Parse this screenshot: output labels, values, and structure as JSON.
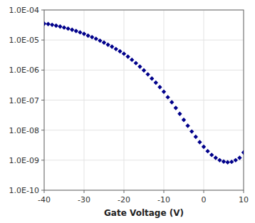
{
  "chart_data": {
    "type": "scatter",
    "xlabel": "Gate Voltage (V)",
    "x": [
      -40,
      -39,
      -38,
      -37,
      -36,
      -35,
      -34,
      -33,
      -32,
      -31,
      -30,
      -29,
      -28,
      -27,
      -26,
      -25,
      -24,
      -23,
      -22,
      -21,
      -20,
      -19,
      -18,
      -17,
      -16,
      -15,
      -14,
      -13,
      -12,
      -11,
      -10,
      -9,
      -8,
      -7,
      -6,
      -5,
      -4,
      -3,
      -2,
      -1,
      0,
      1,
      2,
      3,
      4,
      5,
      6,
      7,
      8,
      9,
      10
    ],
    "values": [
      3.5e-05,
      3.4e-05,
      3.2e-05,
      3e-05,
      2.8e-05,
      2.6e-05,
      2.4e-05,
      2.2e-05,
      2e-05,
      1.8e-05,
      1.6e-05,
      1.4e-05,
      1.25e-05,
      1.1e-05,
      9.5e-06,
      8.2e-06,
      7e-06,
      6e-06,
      5e-06,
      4.2e-06,
      3.5e-06,
      2.8e-06,
      2.2e-06,
      1.7e-06,
      1.3e-06,
      9.8e-07,
      7.2e-07,
      5.2e-07,
      3.8e-07,
      2.7e-07,
      1.9e-07,
      1.25e-07,
      8.5e-08,
      5.5e-08,
      3.5e-08,
      2.2e-08,
      1.4e-08,
      9e-09,
      6e-09,
      4e-09,
      2.8e-09,
      2e-09,
      1.5e-09,
      1.2e-09,
      1e-09,
      9e-10,
      8.5e-10,
      8.8e-10,
      1e-09,
      1.2e-09,
      1.8e-09
    ],
    "color": "#00008B",
    "marker": "diamond",
    "log": "y",
    "xlim": [
      -40,
      10
    ],
    "ylim": [
      1e-10,
      0.0001
    ],
    "xticks": [
      -40,
      -30,
      -20,
      -10,
      0,
      10
    ],
    "yticks": [
      {
        "value": 1e-10,
        "label": "1.0E-10"
      },
      {
        "value": 1e-09,
        "label": "1.0E-09"
      },
      {
        "value": 1e-08,
        "label": "1.0E-08"
      },
      {
        "value": 1e-07,
        "label": "1.0E-07"
      },
      {
        "value": 1e-06,
        "label": "1.0E-06"
      },
      {
        "value": 1e-05,
        "label": "1.0E-05"
      },
      {
        "value": 0.0001,
        "label": "1.0E-04"
      }
    ],
    "grid": true
  }
}
